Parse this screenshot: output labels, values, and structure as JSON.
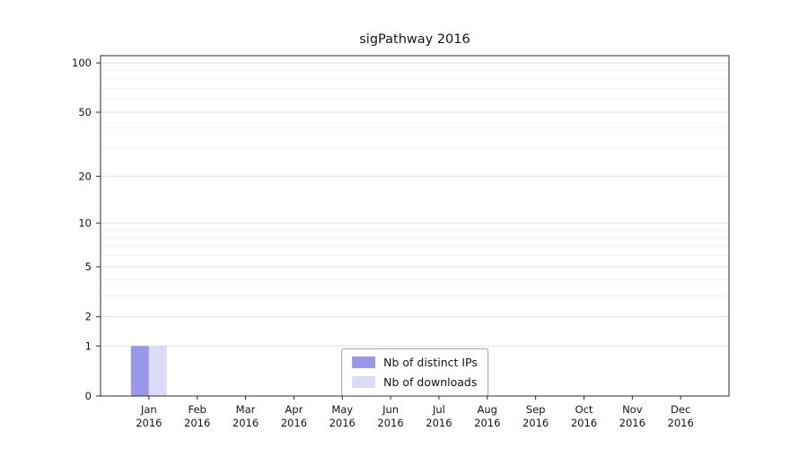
{
  "chart_data": {
    "type": "bar",
    "title": "sigPathway 2016",
    "categories": [
      "Jan",
      "Feb",
      "Mar",
      "Apr",
      "May",
      "Jun",
      "Jul",
      "Aug",
      "Sep",
      "Oct",
      "Nov",
      "Dec"
    ],
    "year": "2016",
    "series": [
      {
        "name": "Nb of distinct IPs",
        "color": "#9897ea",
        "values": [
          1,
          0,
          0,
          0,
          0,
          0,
          0,
          0,
          0,
          0,
          0,
          0
        ]
      },
      {
        "name": "Nb of downloads",
        "color": "#dbdbf7",
        "values": [
          1,
          0,
          0,
          0,
          0,
          0,
          0,
          0,
          0,
          0,
          0,
          0
        ]
      }
    ],
    "yticks": [
      0,
      1,
      2,
      5,
      10,
      20,
      50,
      100
    ],
    "minor_yticks": [
      3,
      4,
      6,
      7,
      8,
      9,
      30,
      40,
      60,
      70,
      80,
      90
    ],
    "scale": "log1p",
    "ylim_log_max": 2.048,
    "grid": true,
    "legend_position": "bottom-center"
  }
}
